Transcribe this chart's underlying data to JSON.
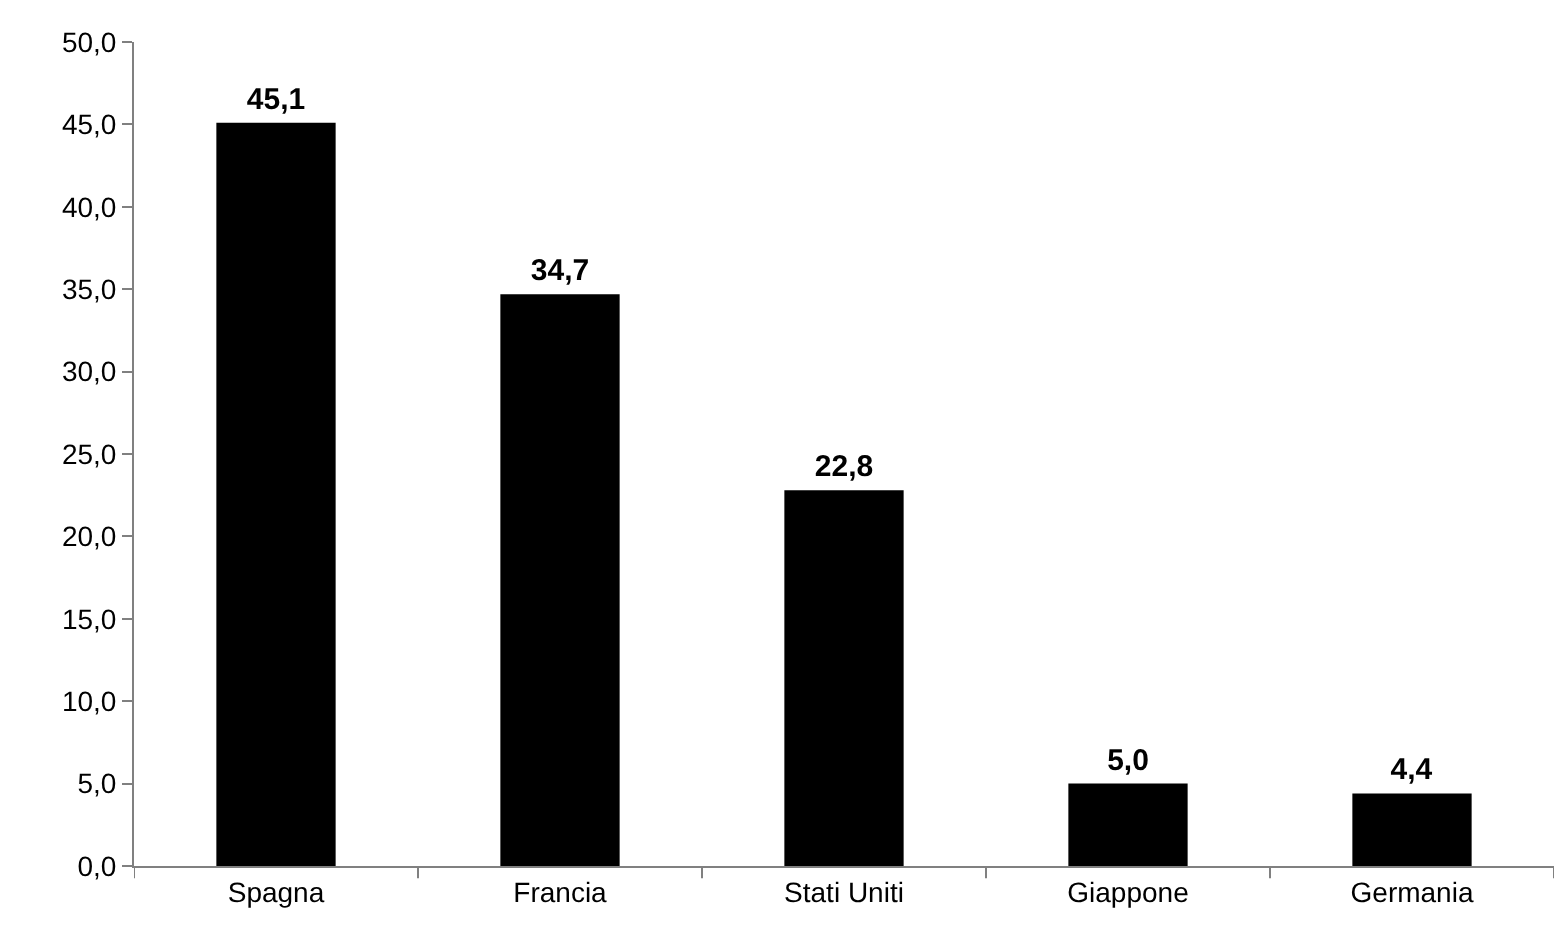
{
  "chart_data": {
    "type": "bar",
    "categories": [
      "Spagna",
      "Francia",
      "Stati Uniti",
      "Giappone",
      "Germania"
    ],
    "values": [
      45.1,
      34.7,
      22.8,
      5.0,
      4.4
    ],
    "value_labels": [
      "45,1",
      "34,7",
      "22,8",
      "5,0",
      "4,4"
    ],
    "color": "#000000",
    "ylim": [
      0,
      50
    ],
    "yticks": [
      {
        "value": 0,
        "label": "0,0"
      },
      {
        "value": 5,
        "label": "5,0"
      },
      {
        "value": 10,
        "label": "10,0"
      },
      {
        "value": 15,
        "label": "15,0"
      },
      {
        "value": 20,
        "label": "20,0"
      },
      {
        "value": 25,
        "label": "25,0"
      },
      {
        "value": 30,
        "label": "30,0"
      },
      {
        "value": 35,
        "label": "35,0"
      },
      {
        "value": 40,
        "label": "40,0"
      },
      {
        "value": 45,
        "label": "45,0"
      },
      {
        "value": 50,
        "label": "50,0"
      }
    ],
    "orientation": "vertical"
  }
}
